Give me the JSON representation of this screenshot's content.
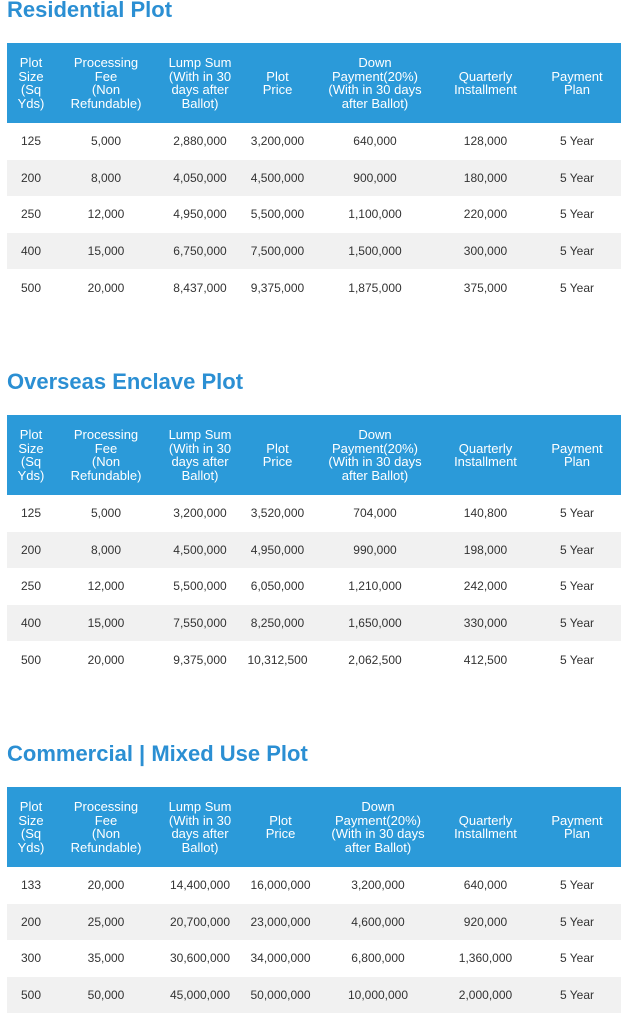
{
  "columns": [
    "Plot\nSize\n(Sq\nYds)",
    "Processing\nFee\n(Non\nRefundable)",
    "Lump Sum\n(With in 30\ndays after\nBallot)",
    "Plot\nPrice",
    "Down\nPayment(20%)\n(With in 30 days\nafter Ballot)",
    "Quarterly\nInstallment",
    "Payment\nPlan"
  ],
  "sections": [
    {
      "title": "Residential Plot",
      "rows": [
        [
          "125",
          "5,000",
          "2,880,000",
          "3,200,000",
          "640,000",
          "128,000",
          "5 Year"
        ],
        [
          "200",
          "8,000",
          "4,050,000",
          "4,500,000",
          "900,000",
          "180,000",
          "5 Year"
        ],
        [
          "250",
          "12,000",
          "4,950,000",
          "5,500,000",
          "1,100,000",
          "220,000",
          "5 Year"
        ],
        [
          "400",
          "15,000",
          "6,750,000",
          "7,500,000",
          "1,500,000",
          "300,000",
          "5 Year"
        ],
        [
          "500",
          "20,000",
          "8,437,000",
          "9,375,000",
          "1,875,000",
          "375,000",
          "5 Year"
        ]
      ]
    },
    {
      "title": "Overseas Enclave Plot",
      "rows": [
        [
          "125",
          "5,000",
          "3,200,000",
          "3,520,000",
          "704,000",
          "140,800",
          "5 Year"
        ],
        [
          "200",
          "8,000",
          "4,500,000",
          "4,950,000",
          "990,000",
          "198,000",
          "5 Year"
        ],
        [
          "250",
          "12,000",
          "5,500,000",
          "6,050,000",
          "1,210,000",
          "242,000",
          "5 Year"
        ],
        [
          "400",
          "15,000",
          "7,550,000",
          "8,250,000",
          "1,650,000",
          "330,000",
          "5 Year"
        ],
        [
          "500",
          "20,000",
          "9,375,000",
          "10,312,500",
          "2,062,500",
          "412,500",
          "5 Year"
        ]
      ]
    },
    {
      "title": "Commercial | Mixed Use Plot",
      "rows": [
        [
          "133",
          "20,000",
          "14,400,000",
          "16,000,000",
          "3,200,000",
          "640,000",
          "5 Year"
        ],
        [
          "200",
          "25,000",
          "20,700,000",
          "23,000,000",
          "4,600,000",
          "920,000",
          "5 Year"
        ],
        [
          "300",
          "35,000",
          "30,600,000",
          "34,000,000",
          "6,800,000",
          "1,360,000",
          "5 Year"
        ],
        [
          "500",
          "50,000",
          "45,000,000",
          "50,000,000",
          "10,000,000",
          "2,000,000",
          "5 Year"
        ]
      ]
    }
  ]
}
